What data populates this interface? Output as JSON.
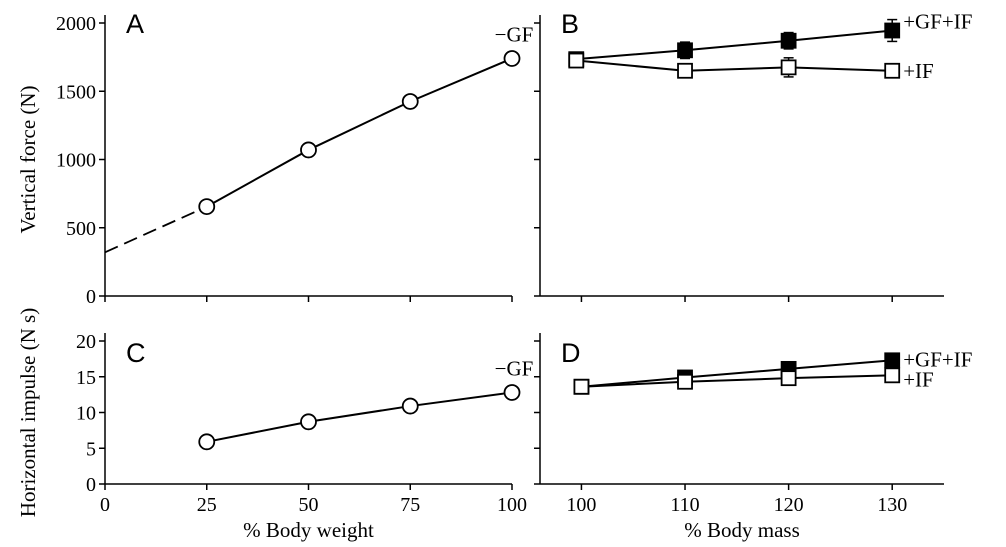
{
  "chart_data": [
    {
      "panel": "A",
      "type": "line",
      "xlabel": "",
      "ylabel": "Vertical force (N)",
      "xlim": [
        0,
        100
      ],
      "ylim": [
        0,
        2000
      ],
      "xticks": [
        0,
        25,
        50,
        75,
        100
      ],
      "yticks": [
        0,
        500,
        1000,
        1500,
        2000
      ],
      "show_x_tick_labels": false,
      "series": [
        {
          "name": "−GF",
          "marker": "open-circle",
          "x": [
            25,
            50,
            75,
            100
          ],
          "y": [
            655,
            1070,
            1425,
            1740
          ],
          "y_err": [
            0,
            0,
            35,
            0
          ],
          "extrapolation": {
            "style": "dashed",
            "from": [
              0,
              320
            ],
            "to": [
              25,
              655
            ]
          }
        }
      ]
    },
    {
      "panel": "B",
      "type": "line",
      "xlabel": "",
      "ylabel": "",
      "xlim": [
        96,
        135
      ],
      "ylim": [
        0,
        2000
      ],
      "xticks": [
        100,
        110,
        120,
        130
      ],
      "yticks": [
        0,
        500,
        1000,
        1500,
        2000
      ],
      "show_x_tick_labels": false,
      "show_y_tick_labels": false,
      "series": [
        {
          "name": "+GF+IF",
          "marker": "filled-square",
          "x": [
            99.5,
            110,
            120,
            130
          ],
          "y": [
            1735,
            1800,
            1870,
            1945
          ],
          "y_err": [
            20,
            60,
            60,
            80
          ]
        },
        {
          "name": "+IF",
          "marker": "open-square",
          "x": [
            99.5,
            110,
            120,
            130
          ],
          "y": [
            1725,
            1650,
            1675,
            1650
          ],
          "y_err": [
            20,
            50,
            70,
            50
          ]
        }
      ]
    },
    {
      "panel": "C",
      "type": "line",
      "xlabel": "% Body weight",
      "ylabel": "Horizontal impulse (N s)",
      "xlim": [
        0,
        100
      ],
      "ylim": [
        0,
        20
      ],
      "xticks": [
        0,
        25,
        50,
        75,
        100
      ],
      "yticks": [
        0,
        5,
        10,
        15,
        20
      ],
      "series": [
        {
          "name": "−GF",
          "marker": "open-circle",
          "x": [
            25,
            50,
            75,
            100
          ],
          "y": [
            5.9,
            8.7,
            10.9,
            12.8
          ],
          "y_err": [
            0,
            0,
            0,
            0
          ]
        }
      ]
    },
    {
      "panel": "D",
      "type": "line",
      "xlabel": "% Body mass",
      "ylabel": "",
      "xlim": [
        96,
        135
      ],
      "ylim": [
        0,
        20
      ],
      "xticks": [
        100,
        110,
        120,
        130
      ],
      "yticks": [
        0,
        5,
        10,
        15,
        20
      ],
      "show_y_tick_labels": false,
      "series": [
        {
          "name": "+GF+IF",
          "marker": "filled-square",
          "x": [
            100,
            110,
            120,
            130
          ],
          "y": [
            13.6,
            14.9,
            16.1,
            17.3
          ],
          "y_err": [
            0,
            0,
            0,
            0
          ]
        },
        {
          "name": "+IF",
          "marker": "open-square",
          "x": [
            100,
            110,
            120,
            130
          ],
          "y": [
            13.6,
            14.3,
            14.8,
            15.2
          ],
          "y_err": [
            0,
            0,
            0,
            0
          ]
        }
      ]
    }
  ]
}
